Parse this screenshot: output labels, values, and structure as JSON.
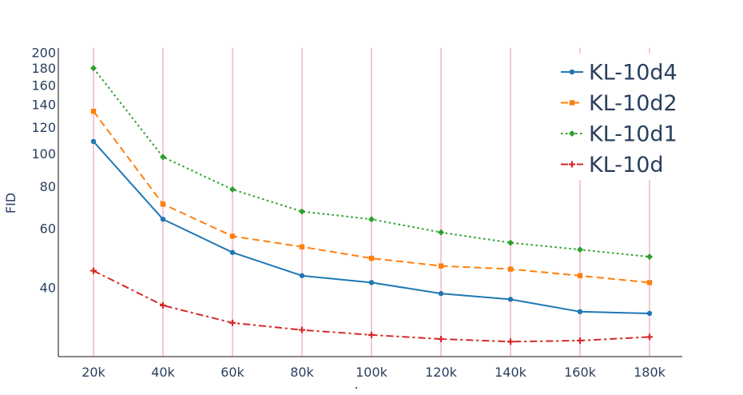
{
  "chart_data": {
    "type": "line",
    "title": "",
    "xlabel": ".",
    "ylabel": "FID",
    "x": [
      "20k",
      "40k",
      "60k",
      "80k",
      "100k",
      "120k",
      "140k",
      "160k",
      "180k"
    ],
    "y_scale": "log",
    "ylim": [
      25,
      200
    ],
    "y_ticks": [
      40,
      60,
      80,
      100,
      120,
      140,
      160,
      180,
      200
    ],
    "grid": "vertical",
    "grid_color": "#f8c8d4",
    "legend_position": "top-right",
    "series": [
      {
        "name": "KL-10d4",
        "color": "#1f77b4",
        "dash": "solid",
        "marker": "circle",
        "values": [
          109,
          64,
          51,
          43.5,
          41.5,
          38.5,
          37,
          34,
          33.6
        ]
      },
      {
        "name": "KL-10d2",
        "color": "#ff7f0e",
        "dash": "dash",
        "marker": "square",
        "values": [
          134,
          71,
          57,
          53,
          49,
          46.5,
          45.5,
          43.5,
          41.5
        ]
      },
      {
        "name": "KL-10d1",
        "color": "#2ca02c",
        "dash": "dot",
        "marker": "diamond",
        "values": [
          180,
          98,
          78.5,
          67.5,
          64,
          58.5,
          54.5,
          52,
          49.5
        ]
      },
      {
        "name": "KL-10d",
        "color": "#d62728",
        "dash": "dashdot",
        "marker": "cross",
        "values": [
          45,
          35.5,
          31.5,
          30,
          29,
          28.2,
          27.7,
          27.9,
          28.6
        ]
      }
    ]
  }
}
